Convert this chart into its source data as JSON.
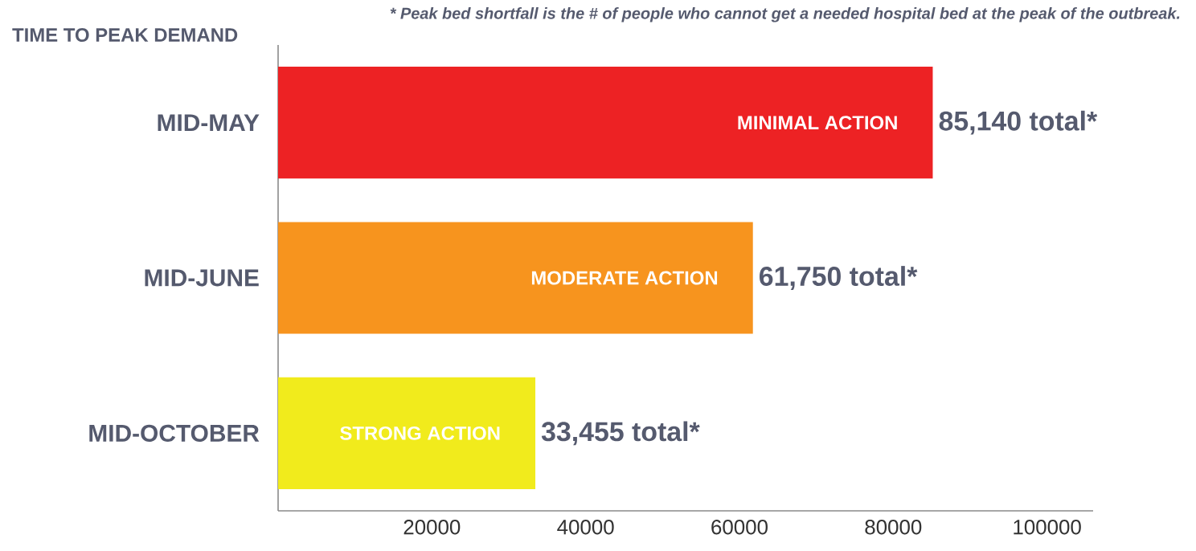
{
  "chart_data": {
    "type": "bar",
    "orientation": "horizontal",
    "ylabel": "TIME TO PEAK DEMAND",
    "categories": [
      "MID-MAY",
      "MID-JUNE",
      "MID-OCTOBER"
    ],
    "values": [
      85140,
      61750,
      33455
    ],
    "colors": [
      "#ed2224",
      "#f7941e",
      "#f1eb1c"
    ],
    "value_labels": [
      "85,140 total*",
      "61,750 total*",
      "33,455 total*"
    ],
    "xlim": [
      0,
      106000
    ],
    "xticks": [
      20000,
      40000,
      60000,
      80000,
      100000
    ],
    "annotations": [
      "* Peak bed shortfall is the # of people who cannot get a needed hospital bed at the peak of the outbreak.",
      "MINIMAL ACTION",
      "MODERATE ACTION",
      "STRONG ACTION"
    ]
  }
}
